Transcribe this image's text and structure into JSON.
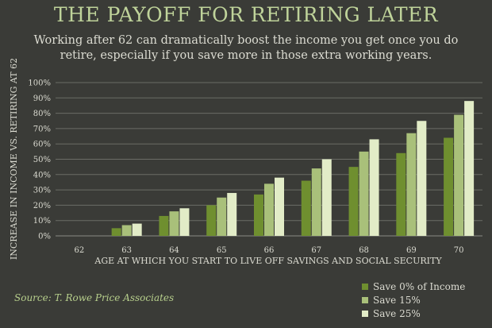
{
  "title": "THE PAYOFF FOR RETIRING LATER",
  "subtitle": "Working after 62 can dramatically boost the income you get once you do retire, especially if you save more in those extra working years.",
  "source": "Source: T. Rowe Price Associates",
  "colors": {
    "background": "#3a3b37",
    "title": "#bfd39a",
    "grid": "#6b6c66"
  },
  "chart_data": {
    "type": "bar",
    "xlabel": "AGE AT WHICH YOU START TO LIVE OFF SAVINGS AND SOCIAL SECURITY",
    "ylabel": "INCREASE IN INCOME VS. RETIRING AT 62",
    "categories": [
      "62",
      "63",
      "64",
      "65",
      "66",
      "67",
      "68",
      "69",
      "70"
    ],
    "yticks": [
      "0%",
      "10%",
      "20%",
      "30%",
      "40%",
      "50%",
      "60%",
      "70%",
      "80%",
      "90%",
      "100%"
    ],
    "ylim": [
      0,
      100
    ],
    "grid": true,
    "legend_position": "bottom-right",
    "series": [
      {
        "name": "Save 0% of Income",
        "color": "#6f8f2f",
        "values": [
          0,
          5,
          13,
          20,
          27,
          36,
          45,
          54,
          64
        ]
      },
      {
        "name": "Save 15%",
        "color": "#a9c07a",
        "values": [
          0,
          7,
          16,
          25,
          34,
          44,
          55,
          67,
          79
        ]
      },
      {
        "name": "Save 25%",
        "color": "#e2ecc7",
        "values": [
          0,
          8,
          18,
          28,
          38,
          50,
          63,
          75,
          88
        ]
      }
    ]
  }
}
